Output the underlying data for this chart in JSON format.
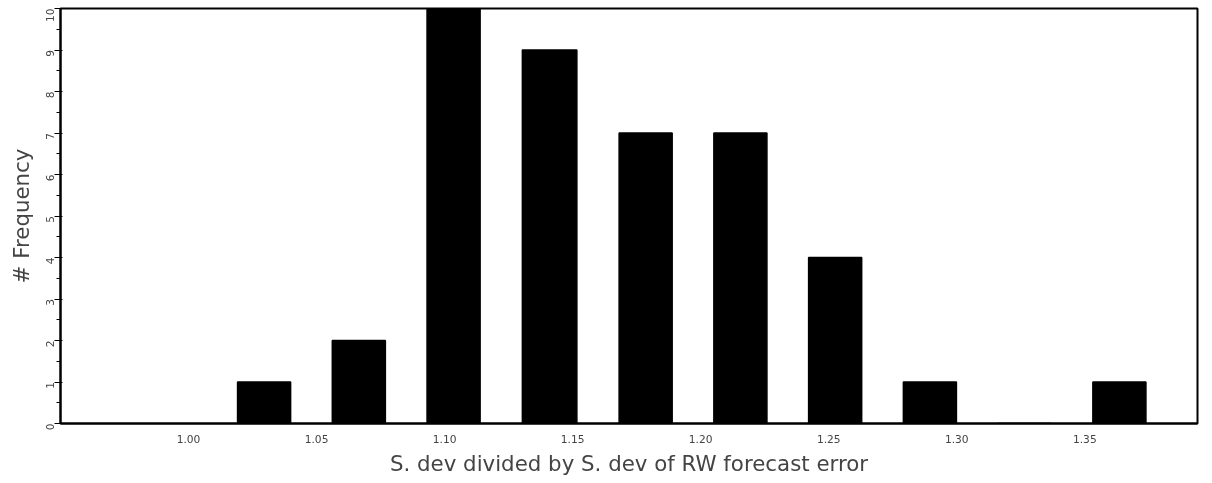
{
  "chart_data": {
    "type": "histogram",
    "xlabel": "S. dev divided by S. dev of RW forecast error",
    "ylabel": "# Frequency",
    "bins": [
      1.011,
      1.048,
      1.085,
      1.122,
      1.16,
      1.197,
      1.234,
      1.271,
      1.308,
      1.345,
      1.382
    ],
    "values": [
      1,
      2,
      10,
      9,
      7,
      7,
      4,
      1,
      0,
      1
    ],
    "color": "#000000",
    "xlim": [
      0.95,
      1.394
    ],
    "ylim": [
      0,
      10
    ],
    "xticks": [
      {
        "value": 1.0,
        "label": "1.00"
      },
      {
        "value": 1.05,
        "label": "1.05"
      },
      {
        "value": 1.1,
        "label": "1.10"
      },
      {
        "value": 1.15,
        "label": "1.15"
      },
      {
        "value": 1.2,
        "label": "1.20"
      },
      {
        "value": 1.25,
        "label": "1.25"
      },
      {
        "value": 1.3,
        "label": "1.30"
      },
      {
        "value": 1.35,
        "label": "1.35"
      }
    ],
    "yticks": [
      0,
      1,
      2,
      3,
      4,
      5,
      6,
      7,
      8,
      9,
      10
    ],
    "grid": false
  }
}
